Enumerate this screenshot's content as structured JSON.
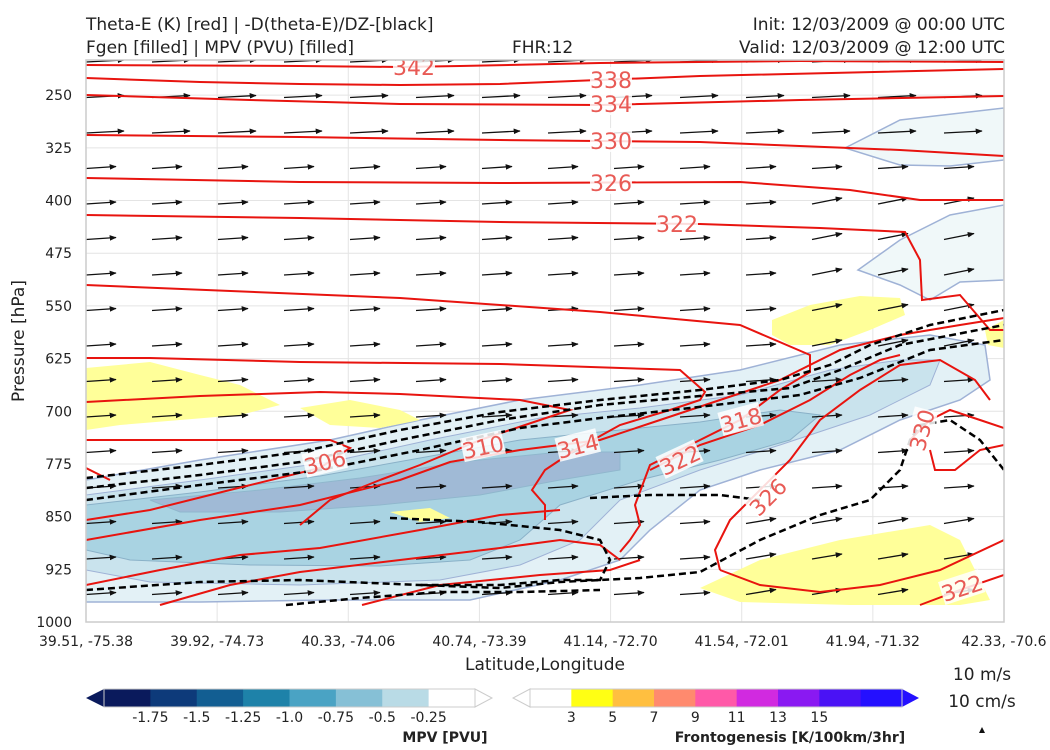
{
  "header": {
    "title_line1": "Theta-E (K) [red] | -D(theta-E)/DZ-[black]",
    "title_line2": "Fgen [filled] | MPV (PVU) [filled]",
    "fhr": "FHR:12",
    "init": "Init: 12/03/2009 @ 00:00 UTC",
    "valid": "Valid: 12/03/2009 @ 12:00 UTC"
  },
  "colors": {
    "theta_e": "#e8140f",
    "stability": "#000000",
    "mpv_fill": "#a9d3e2",
    "fgen_fill": "#ffff99",
    "mpv_colorbar": [
      "#0a1a5c",
      "#0d3a7a",
      "#125e92",
      "#1e82a9",
      "#4aa3c4",
      "#86c0d6",
      "#b9dbe6",
      "#ffffff"
    ],
    "fgen_colorbar": [
      "#ffffff",
      "#ffff14",
      "#ffbf40",
      "#ff8a6e",
      "#ff59a8",
      "#d12ae0",
      "#8a19f2",
      "#4a12f5",
      "#2410ff"
    ]
  },
  "chart_data": {
    "type": "contour-cross-section",
    "xlabel": "Latitude,Longitude",
    "ylabel": "Pressure [hPa]",
    "x_ticks": [
      "39.51, -75.38",
      "39.92, -74.73",
      "40.33, -74.06",
      "40.74, -73.39",
      "41.14, -72.70",
      "41.54, -72.01",
      "41.94, -71.32",
      "42.33, -70.6"
    ],
    "y_ticks": [
      250,
      325,
      400,
      475,
      550,
      625,
      700,
      775,
      850,
      925,
      1000
    ],
    "ylim": [
      200,
      1000
    ],
    "y_scale": "reversed",
    "theta_e_labels": [
      "342",
      "338",
      "334",
      "330",
      "326",
      "322",
      "318",
      "314",
      "310",
      "306",
      "322",
      "326",
      "330",
      "322"
    ],
    "mpv_colorbar": {
      "label": "MPV [PVU]",
      "ticks": [
        "-1.75",
        "-1.5",
        "-1.25",
        "-1.0",
        "-0.75",
        "-0.5",
        "-0.25"
      ]
    },
    "fgen_colorbar": {
      "label": "Frontogenesis [K/100km/3hr]",
      "ticks": [
        "3",
        "5",
        "7",
        "9",
        "11",
        "13",
        "15"
      ]
    },
    "vector_key": {
      "horizontal": "10 m/s",
      "vertical": "10 cm/s"
    },
    "grid": true,
    "wind_vectors": "westerly, mostly horizontal"
  }
}
